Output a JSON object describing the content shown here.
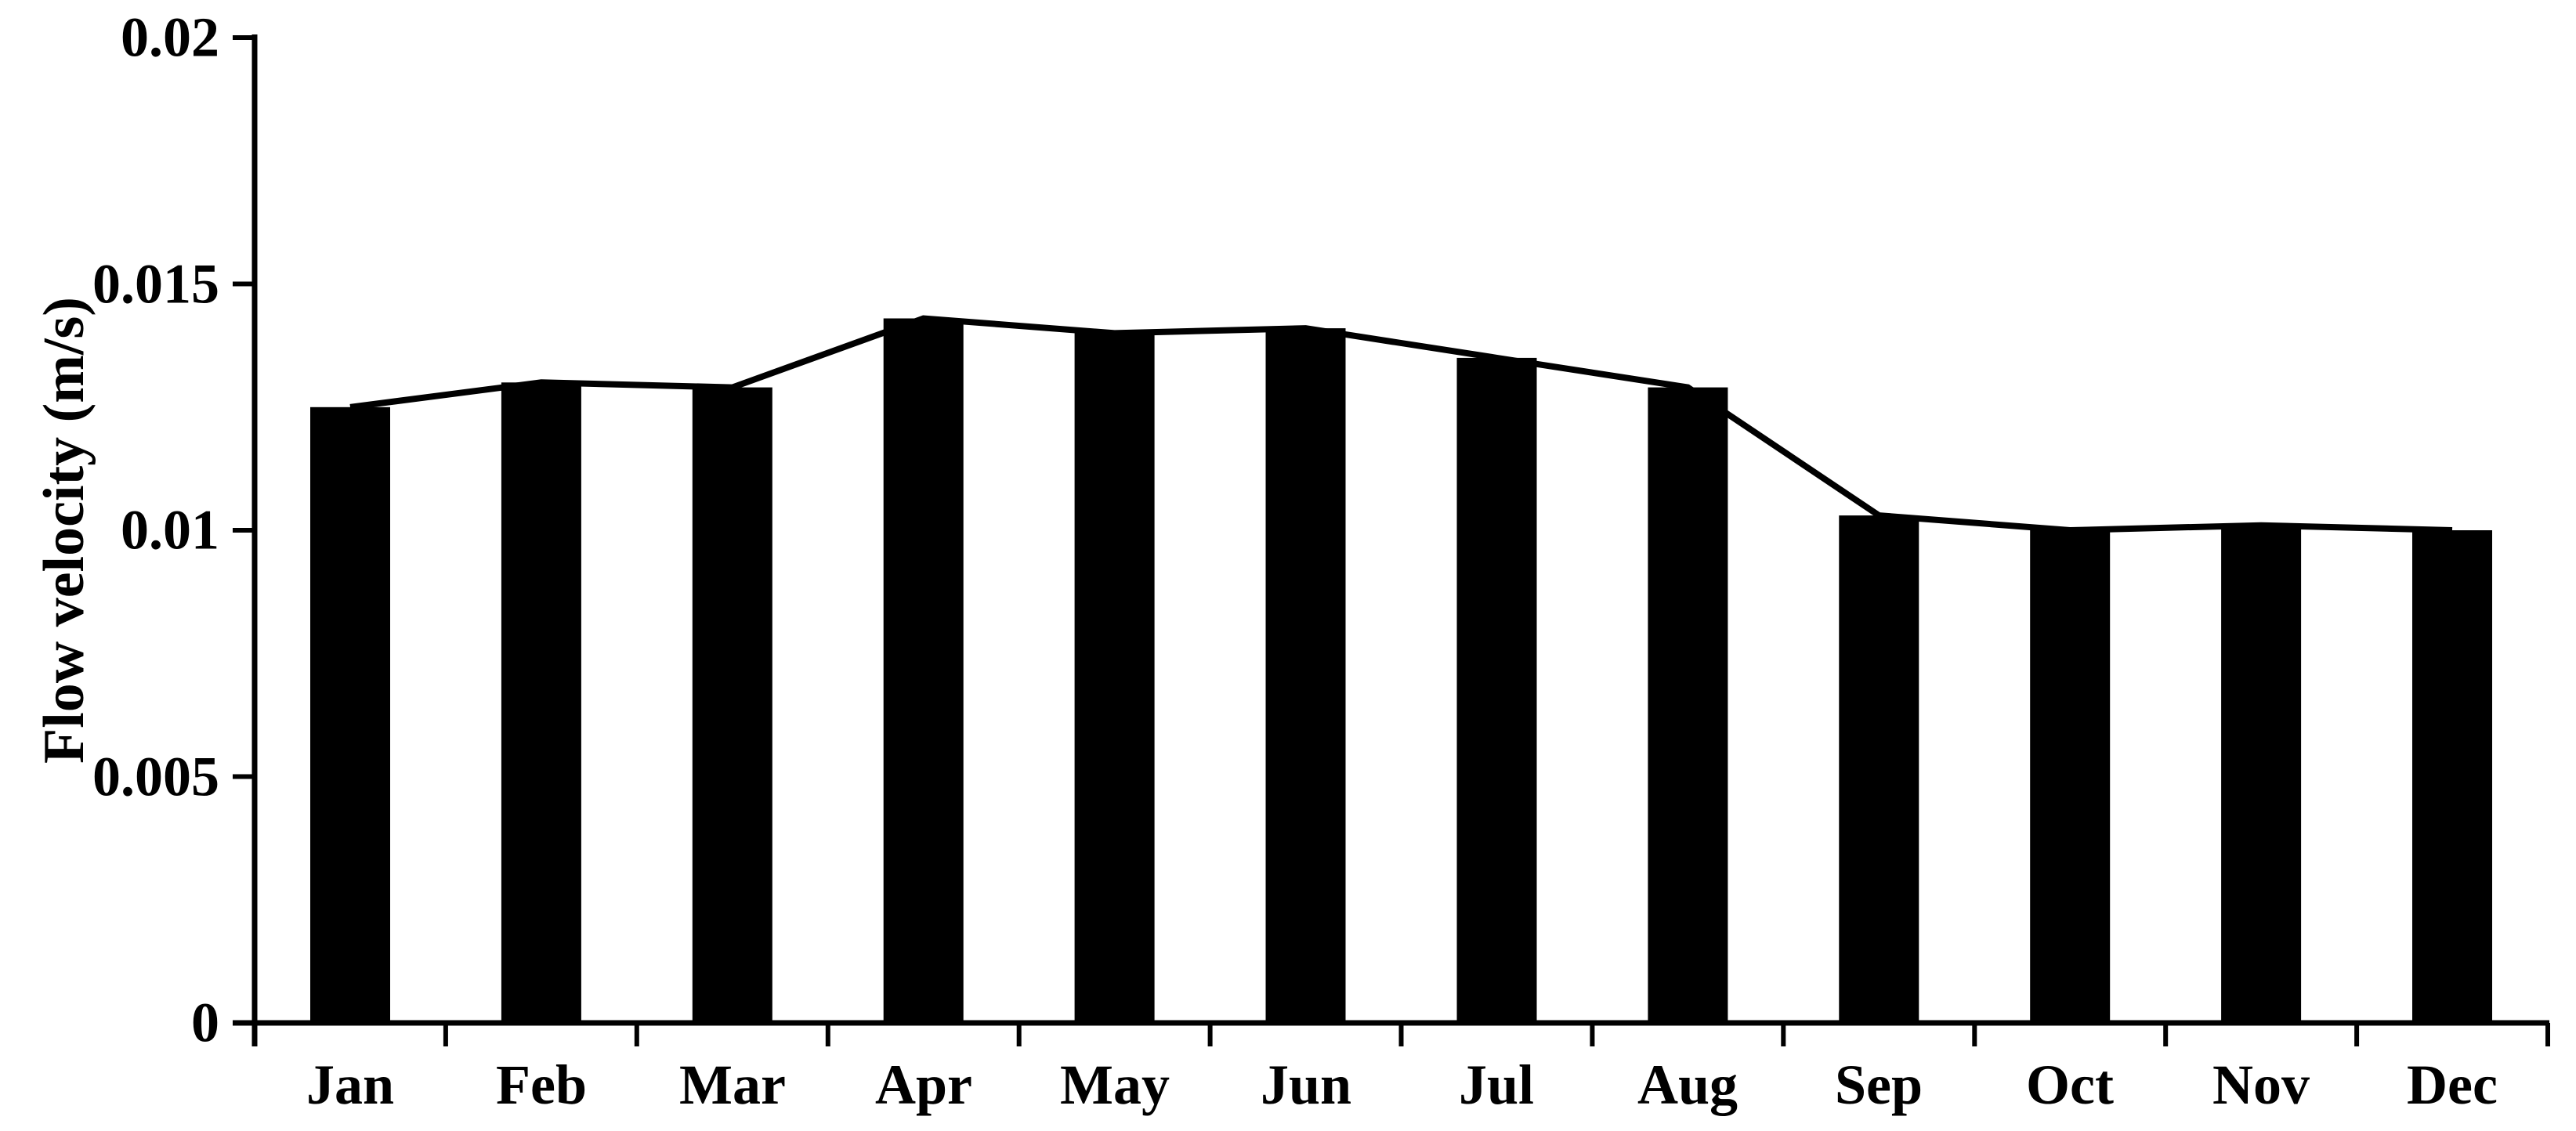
{
  "figure": {
    "background": "#ffffff",
    "ink_color": "#000000"
  },
  "chart_data": {
    "type": "bar",
    "title": "",
    "xlabel": "",
    "ylabel": "Flow velocity (m/s)",
    "categories": [
      "Jan",
      "Feb",
      "Mar",
      "Apr",
      "May",
      "Jun",
      "Jul",
      "Aug",
      "Sep",
      "Oct",
      "Nov",
      "Dec"
    ],
    "values": [
      0.0125,
      0.013,
      0.0129,
      0.0143,
      0.014,
      0.0141,
      0.0135,
      0.0129,
      0.0103,
      0.01,
      0.0101,
      0.01
    ],
    "line_overlay": {
      "type": "line",
      "description": "black line connecting the tops of the bars at category centers",
      "values": [
        0.0125,
        0.013,
        0.0129,
        0.0143,
        0.014,
        0.0141,
        0.0135,
        0.0129,
        0.0103,
        0.01,
        0.0101,
        0.01
      ]
    },
    "ylim": [
      0,
      0.02
    ],
    "y_ticks": [
      {
        "value": 0,
        "label": "0"
      },
      {
        "value": 0.005,
        "label": "0.005"
      },
      {
        "value": 0.01,
        "label": "0.01"
      },
      {
        "value": 0.015,
        "label": "0.015"
      },
      {
        "value": 0.02,
        "label": "0.02"
      }
    ],
    "grid": false,
    "legend": "none",
    "bar_color": "#000000",
    "line_color": "#000000"
  }
}
